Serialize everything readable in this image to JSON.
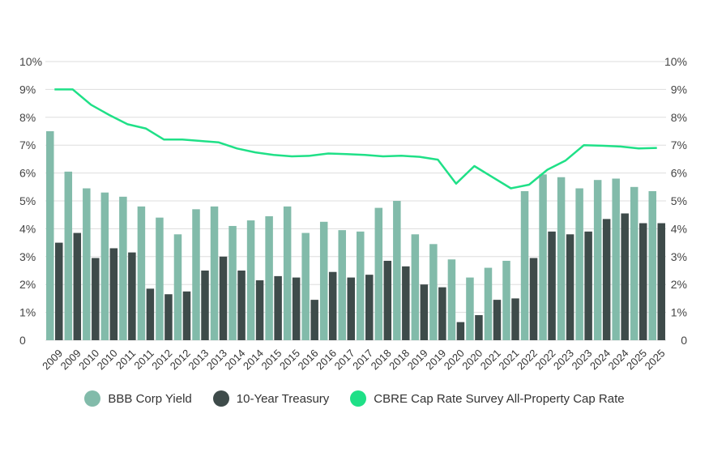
{
  "chart_data": {
    "type": "bar",
    "y_ticks": [
      "0",
      "1%",
      "2%",
      "3%",
      "4%",
      "5%",
      "6%",
      "7%",
      "8%",
      "9%",
      "10%"
    ],
    "ylim": [
      0,
      10
    ],
    "grid": true,
    "legend_placement": "bottom",
    "categories": [
      "2009",
      "2009",
      "2010",
      "2010",
      "2011",
      "2011",
      "2012",
      "2012",
      "2013",
      "2013",
      "2014",
      "2014",
      "2015",
      "2015",
      "2016",
      "2016",
      "2017",
      "2017",
      "2018",
      "2018",
      "2019",
      "2019",
      "2020",
      "2020",
      "2021",
      "2021",
      "2022",
      "2022",
      "2023",
      "2023",
      "2024",
      "2024",
      "2025",
      "2025"
    ],
    "series": [
      {
        "name": "BBB Corp Yield",
        "type": "bar",
        "color": "#82bbaa",
        "values": [
          7.5,
          6.05,
          5.45,
          5.3,
          5.15,
          4.8,
          4.4,
          3.8,
          4.7,
          4.8,
          4.1,
          4.3,
          4.45,
          4.8,
          3.85,
          4.25,
          3.95,
          3.9,
          4.75,
          5.0,
          3.8,
          3.45,
          2.9,
          2.25,
          2.6,
          2.85,
          5.35,
          5.95,
          5.85,
          5.45,
          5.75,
          5.8,
          5.5,
          5.35
        ]
      },
      {
        "name": "10-Year Treasury",
        "type": "bar",
        "color": "#3e4b4a",
        "values": [
          3.5,
          3.85,
          2.95,
          3.3,
          3.15,
          1.85,
          1.65,
          1.75,
          2.5,
          3.0,
          2.5,
          2.15,
          2.3,
          2.25,
          1.45,
          2.45,
          2.25,
          2.35,
          2.85,
          2.65,
          2.0,
          1.9,
          0.65,
          0.9,
          1.45,
          1.5,
          2.95,
          3.9,
          3.8,
          3.9,
          4.35,
          4.55,
          4.2,
          4.2
        ]
      },
      {
        "name": "CBRE Cap Rate Survey All-Property Cap Rate",
        "type": "line",
        "color": "#1fe087",
        "values": [
          9.0,
          9.0,
          8.45,
          8.08,
          7.75,
          7.6,
          7.2,
          7.2,
          7.15,
          7.1,
          6.88,
          6.74,
          6.65,
          6.6,
          6.62,
          6.7,
          6.68,
          6.65,
          6.6,
          6.62,
          6.58,
          6.48,
          5.62,
          6.25,
          5.85,
          5.45,
          5.58,
          6.12,
          6.45,
          7.0,
          6.98,
          6.95,
          6.88,
          6.9
        ]
      }
    ]
  }
}
